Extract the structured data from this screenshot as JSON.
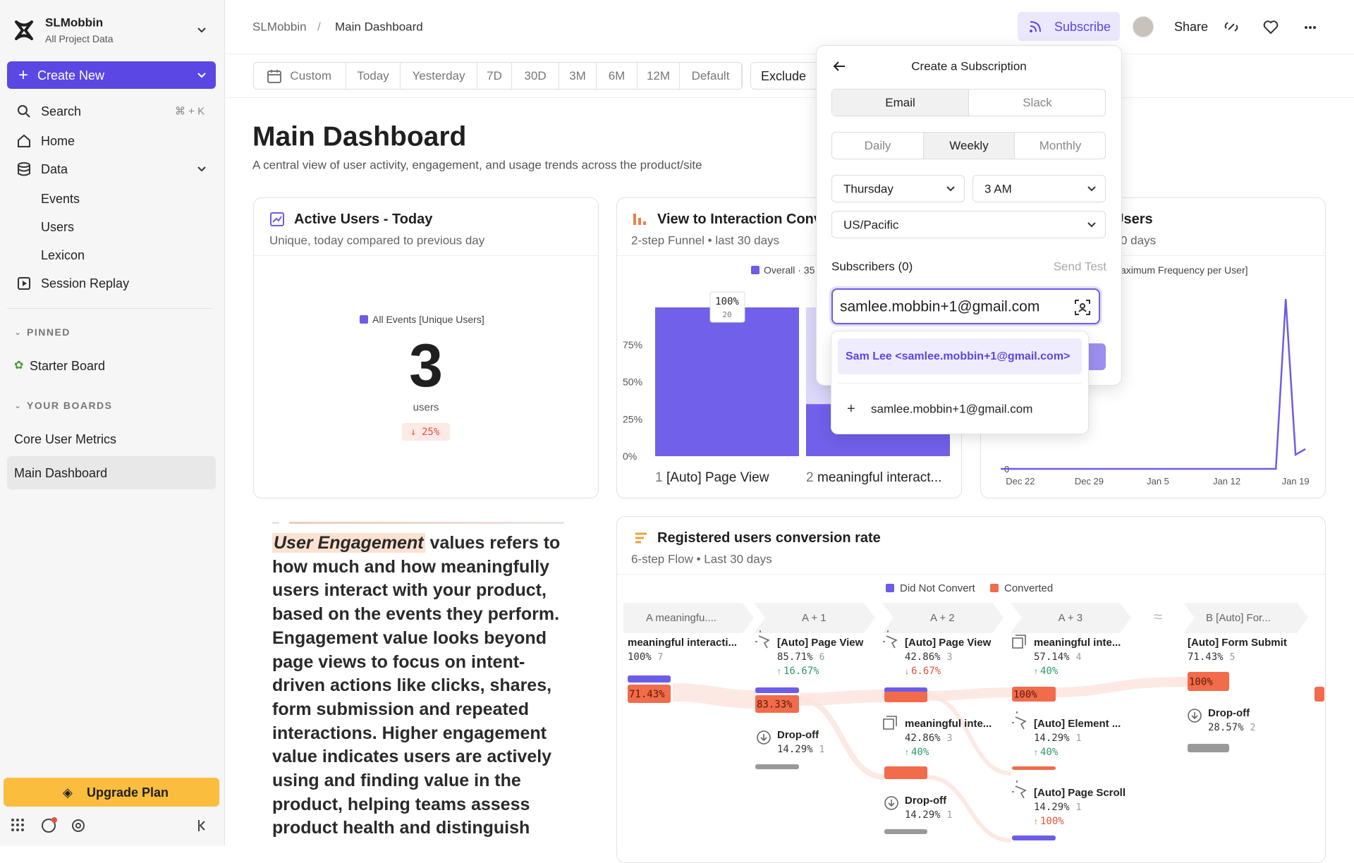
{
  "sidebar": {
    "workspace": "SLMobbin",
    "project": "All Project Data",
    "create_new": "Create New",
    "search": "Search",
    "search_shortcut": "⌘ + K",
    "nav": [
      "Home",
      "Data",
      "Events",
      "Users",
      "Lexicon",
      "Session Replay"
    ],
    "pinned_heading": "PINNED",
    "pinned": [
      "Starter Board"
    ],
    "boards_heading": "YOUR BOARDS",
    "boards": [
      "Core User Metrics",
      "Main Dashboard"
    ],
    "upgrade": "Upgrade Plan"
  },
  "topbar": {
    "breadcrumb": [
      "SLMobbin",
      "Main Dashboard"
    ],
    "subscribe": "Subscribe",
    "share": "Share"
  },
  "date_filter": {
    "options": [
      "Custom",
      "Today",
      "Yesterday",
      "7D",
      "30D",
      "3M",
      "6M",
      "12M",
      "Default"
    ],
    "exclude": "Exclude"
  },
  "header": {
    "title": "Main Dashboard",
    "description": "A central view of user activity, engagement, and usage trends across the product/site"
  },
  "widgets": {
    "active_users": {
      "title": "Active Users - Today",
      "subtitle": "Unique, today compared to previous day",
      "legend": "All Events [Unique Users]",
      "value": 3,
      "unit": "users",
      "change": "25%"
    },
    "funnel": {
      "type": "bar",
      "title": "View to Interaction Conv",
      "subtitle": "2-step Funnel • last 30 days",
      "legend": "Overall · 35",
      "steps": [
        "1",
        "2"
      ],
      "categories": [
        "[Auto] Page View",
        "meaningful interact..."
      ],
      "values": [
        100,
        35
      ],
      "top_label": "100%",
      "top_count": "20",
      "color": "#7060ea",
      "remainder_color": "#dcd8fb",
      "ylim": [
        0,
        100
      ],
      "yticks": [
        {
          "value": 0,
          "label": "0%"
        },
        {
          "value": 25,
          "label": "25%"
        },
        {
          "value": 50,
          "label": "50%"
        },
        {
          "value": 75,
          "label": "75%"
        }
      ]
    },
    "frequency": {
      "type": "line",
      "title": "Users",
      "subtitle": "0 days",
      "legend": "aximum Frequency per User]",
      "x": [
        "Dec 20",
        "Jan 17",
        "Jan 18",
        "Jan 19",
        "Jan 20"
      ],
      "values": [
        0,
        0,
        3,
        0.25,
        0.35
      ],
      "color": "#6d5ce8",
      "xlim": [
        "Dec 20",
        "Jan 21"
      ],
      "xticks": [
        "Dec 22",
        "Dec 29",
        "Jan 5",
        "Jan 12",
        "Jan 19"
      ],
      "ylim": [
        0,
        3.3
      ],
      "yticks": [
        0
      ]
    },
    "engagement": {
      "highlight": "User Engagement",
      "text": " values refers to how much and how meaningfully users interact with your product, based on the events they perform. Engagement value looks beyond page views to focus on intent-driven actions like clicks, shares, form submission and repeated interactions. Higher engagement value indicates users are actively using and finding value in the product, helping teams assess product health and distinguish"
    },
    "flow": {
      "title": "Registered users conversion rate",
      "subtitle": "6-step Flow • Last 30 days",
      "legend": [
        "Did Not Convert",
        "Converted"
      ],
      "legend_colors": [
        "#6d5ce8",
        "#f26b4a"
      ],
      "steps": [
        "A  meaningfu....",
        "A + 1",
        "A + 2",
        "A + 3",
        "B  [Auto] For..."
      ],
      "nodes": [
        {
          "name": "meaningful interacti...",
          "pct": "100%",
          "count": "7",
          "conversion": "71.43%"
        },
        {
          "name": "[Auto] Page View",
          "pct": "85.71%",
          "count": "6",
          "change": "16.67%",
          "trend": "up",
          "trend_color": "#2f9a6a",
          "conversion": "83.33%"
        },
        {
          "name": "[Auto] Page View",
          "pct": "42.86%",
          "count": "3",
          "change": "6.67%",
          "trend": "down",
          "trend_color": "#e4533a"
        },
        {
          "name": "meaningful inte...",
          "pct": "57.14%",
          "count": "4",
          "change": "40%",
          "trend": "up",
          "trend_color": "#2f9a6a",
          "conversion": "100%"
        },
        {
          "name": "[Auto] Form Submit",
          "pct": "71.43%",
          "count": "5",
          "conversion": "100%"
        },
        {
          "name": "Drop-off",
          "pct": "14.29%",
          "count": "1"
        },
        {
          "name": "meaningful inte...",
          "pct": "42.86%",
          "count": "3",
          "change": "40%",
          "trend": "up",
          "trend_color": "#2f9a6a"
        },
        {
          "name": "[Auto] Element ...",
          "pct": "14.29%",
          "count": "1",
          "change": "40%",
          "trend": "up",
          "trend_color": "#2f9a6a"
        },
        {
          "name": "Drop-off",
          "pct": "14.29%",
          "count": "1"
        },
        {
          "name": "[Auto] Page Scroll",
          "pct": "14.29%",
          "count": "1",
          "change": "100%",
          "trend": "up",
          "trend_color": "#e4533a"
        },
        {
          "name": "Drop-off",
          "pct": "28.57%",
          "count": "2"
        }
      ]
    }
  },
  "popup": {
    "title": "Create a Subscription",
    "channels": [
      "Email",
      "Slack"
    ],
    "frequency": [
      "Daily",
      "Weekly",
      "Monthly"
    ],
    "day": "Thursday",
    "time": "3 AM",
    "timezone": "US/Pacific",
    "subscribers": "Subscribers (0)",
    "send_test": "Send Test",
    "input": "samlee.mobbin+1@gmail.com",
    "suggestions": [
      "Sam Lee <samlee.mobbin+1@gmail.com>",
      "samlee.mobbin+1@gmail.com"
    ]
  }
}
